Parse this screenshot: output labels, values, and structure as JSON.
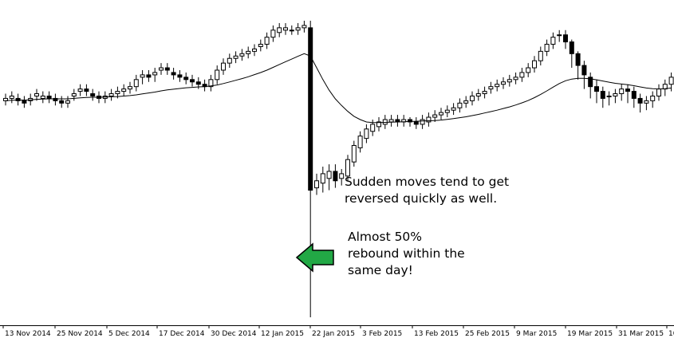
{
  "chart_data": {
    "type": "candlestick",
    "title": "",
    "xlabel": "",
    "ylabel": "",
    "x_tick_labels": [
      "13 Nov 2014",
      "25 Nov 2014",
      "5 Dec 2014",
      "17 Dec 2014",
      "30 Dec 2014",
      "12 Jan 2015",
      "22 Jan 2015",
      "3 Feb 2015",
      "13 Feb 2015",
      "25 Feb 2015",
      "9 Mar 2015",
      "19 Mar 2015",
      "31 Mar 2015",
      "10"
    ],
    "series": [
      {
        "type": "candlestick",
        "closes": [
          98,
          99,
          97,
          96,
          98,
          100,
          99,
          98,
          97,
          96,
          97,
          100,
          102,
          101,
          99,
          98,
          99,
          100,
          101,
          102,
          103,
          106,
          108,
          107,
          109,
          111,
          110,
          108,
          107,
          106,
          105,
          104,
          103,
          106,
          110,
          113,
          115,
          116,
          117,
          118,
          119,
          121,
          124,
          127,
          128,
          128,
          127,
          128,
          129,
          59,
          63,
          66,
          67,
          63,
          66,
          72,
          78,
          82,
          85,
          87,
          88,
          89,
          89,
          88,
          89,
          88,
          87,
          89,
          90,
          91,
          92,
          93,
          94,
          96,
          97,
          99,
          100,
          101,
          103,
          104,
          105,
          106,
          107,
          109,
          111,
          114,
          118,
          121,
          124,
          125,
          122,
          117,
          112,
          108,
          103,
          101,
          98,
          99,
          100,
          102,
          101,
          98,
          96,
          97,
          99,
          102,
          104,
          107
        ],
        "opens": [
          97,
          98,
          98,
          97,
          97,
          99,
          98,
          99,
          98,
          97,
          96,
          99,
          101,
          102,
          100,
          99,
          98,
          99,
          100,
          101,
          102,
          103,
          107,
          108,
          108,
          110,
          111,
          109,
          108,
          107,
          106,
          105,
          104,
          103,
          106,
          110,
          113,
          115,
          116,
          117,
          118,
          120,
          121,
          124,
          126,
          127,
          127,
          127,
          128,
          128,
          60,
          62,
          64,
          67,
          64,
          65,
          71,
          77,
          81,
          84,
          86,
          87,
          88,
          89,
          88,
          89,
          88,
          87,
          88,
          90,
          91,
          92,
          93,
          94,
          96,
          97,
          99,
          100,
          102,
          103,
          104,
          105,
          106,
          107,
          109,
          111,
          114,
          118,
          121,
          125,
          125,
          122,
          117,
          112,
          107,
          103,
          101,
          99,
          99,
          100,
          102,
          101,
          98,
          96,
          97,
          99,
          102,
          104
        ],
        "lows": [
          95,
          96,
          95,
          94,
          95,
          97,
          96,
          96,
          95,
          94,
          94,
          97,
          99,
          99,
          97,
          96,
          96,
          97,
          98,
          99,
          100,
          101,
          104,
          105,
          105,
          108,
          108,
          106,
          105,
          104,
          103,
          102,
          101,
          101,
          104,
          108,
          111,
          113,
          114,
          115,
          116,
          118,
          119,
          122,
          124,
          125,
          125,
          125,
          126,
          5,
          57,
          58,
          59,
          60,
          61,
          63,
          69,
          75,
          79,
          82,
          84,
          85,
          86,
          86,
          86,
          86,
          85,
          85,
          86,
          88,
          89,
          90,
          91,
          92,
          94,
          95,
          97,
          98,
          100,
          101,
          102,
          103,
          104,
          105,
          107,
          109,
          112,
          116,
          119,
          122,
          119,
          111,
          106,
          102,
          98,
          96,
          94,
          95,
          96,
          97,
          96,
          94,
          92,
          93,
          94,
          97,
          99,
          101
        ],
        "highs": [
          100,
          101,
          100,
          99,
          100,
          102,
          101,
          101,
          100,
          99,
          99,
          102,
          104,
          104,
          102,
          101,
          101,
          102,
          103,
          104,
          105,
          108,
          110,
          110,
          111,
          113,
          113,
          111,
          110,
          109,
          108,
          107,
          106,
          108,
          112,
          115,
          117,
          118,
          119,
          120,
          121,
          123,
          126,
          129,
          130,
          130,
          129,
          130,
          131,
          131,
          66,
          69,
          70,
          70,
          68,
          74,
          80,
          84,
          87,
          89,
          90,
          91,
          91,
          91,
          91,
          90,
          90,
          91,
          92,
          93,
          94,
          95,
          96,
          98,
          99,
          101,
          102,
          103,
          105,
          106,
          107,
          108,
          109,
          111,
          113,
          116,
          120,
          123,
          126,
          127,
          127,
          123,
          118,
          114,
          109,
          106,
          103,
          101,
          102,
          104,
          104,
          103,
          100,
          99,
          101,
          104,
          106,
          109
        ]
      },
      {
        "type": "line",
        "name": "",
        "values": [
          97,
          97.2,
          97.3,
          97.3,
          97.4,
          97.6,
          97.7,
          97.8,
          97.8,
          97.8,
          97.8,
          98.0,
          98.2,
          98.4,
          98.5,
          98.5,
          98.6,
          98.7,
          98.8,
          99.0,
          99.2,
          99.5,
          99.9,
          100.3,
          100.7,
          101.2,
          101.6,
          101.9,
          102.2,
          102.5,
          102.7,
          102.9,
          103.0,
          103.3,
          103.7,
          104.3,
          105.0,
          105.7,
          106.4,
          107.2,
          108.1,
          109.0,
          110.0,
          111.2,
          112.4,
          113.6,
          114.7,
          115.9,
          117.0,
          116.0,
          111.0,
          106.0,
          101.5,
          97.8,
          95.0,
          92.5,
          90.4,
          89.0,
          88.0,
          87.7,
          87.7,
          87.8,
          87.9,
          88.0,
          88.1,
          88.2,
          88.3,
          88.4,
          88.5,
          88.6,
          88.8,
          89.1,
          89.4,
          89.8,
          90.2,
          90.7,
          91.2,
          91.8,
          92.4,
          93.0,
          93.7,
          94.4,
          95.2,
          96.1,
          97.1,
          98.3,
          99.7,
          101.2,
          102.8,
          104.3,
          105.5,
          106.2,
          106.5,
          106.5,
          106.3,
          105.9,
          105.4,
          104.9,
          104.4,
          104.1,
          103.8,
          103.4,
          102.9,
          102.4,
          102.1,
          102.0,
          102.1,
          102.4
        ]
      }
    ],
    "annotations": [
      {
        "lines": [
          "Sudden moves tend to get",
          "reversed quickly as well."
        ]
      },
      {
        "lines": [
          "Almost 50%",
          "rebound within the",
          "same day!"
        ]
      }
    ],
    "colors": {
      "bull_fill": "#ffffff",
      "bear_fill": "#000000",
      "wick": "#000000",
      "ma_line": "#000000",
      "arrow": "#22a845"
    }
  }
}
